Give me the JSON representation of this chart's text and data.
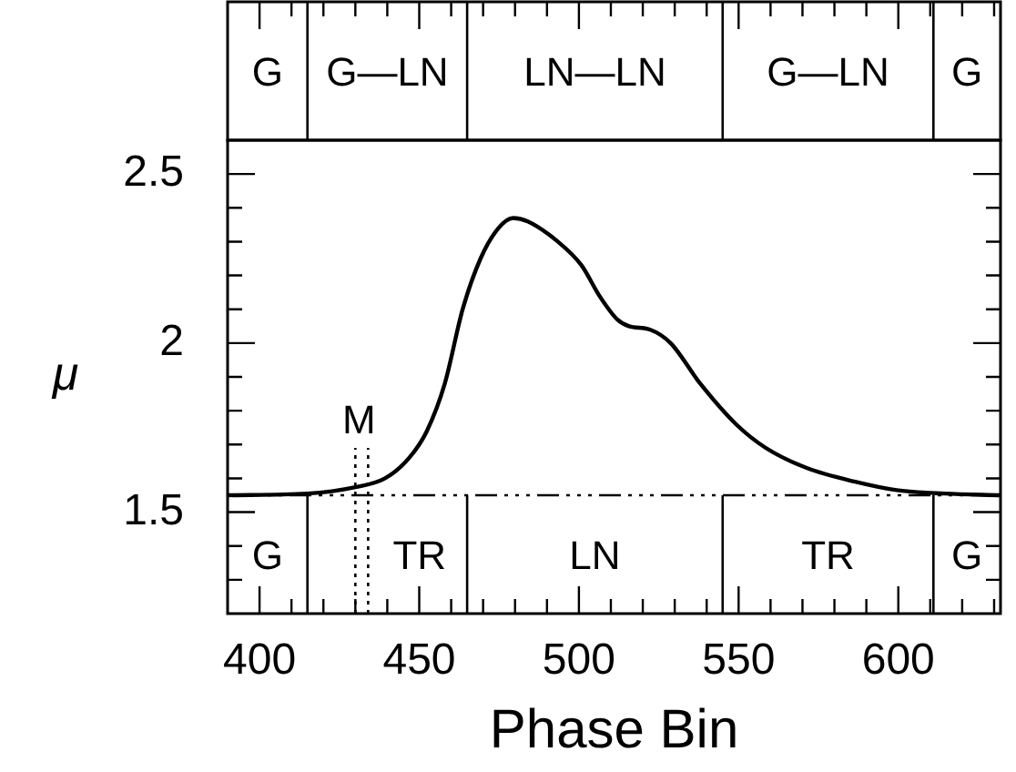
{
  "chart_data": {
    "type": "line",
    "xlabel": "Phase Bin",
    "ylabel": "μ",
    "color": "#000000",
    "x": [
      390,
      415,
      430,
      439.3,
      446.8,
      452.4,
      458,
      463.6,
      469.2,
      474.8,
      479.4,
      484,
      493.4,
      500.8,
      506.4,
      512,
      515.7,
      522.2,
      528.7,
      538,
      549.2,
      558.5,
      571.5,
      586.5,
      599.5,
      614.4,
      632
    ],
    "values": [
      1.55,
      1.555,
      1.574,
      1.6,
      1.66,
      1.74,
      1.88,
      2.1,
      2.25,
      2.34,
      2.37,
      2.36,
      2.3,
      2.23,
      2.14,
      2.07,
      2.05,
      2.04,
      2.0,
      1.88,
      1.76,
      1.69,
      1.63,
      1.59,
      1.565,
      1.555,
      1.55
    ],
    "xlim": [
      390,
      632
    ],
    "xticks": [
      400,
      {
        "value": 410,
        "label": null
      },
      {
        "value": 420,
        "label": null
      },
      {
        "value": 430,
        "label": null
      },
      {
        "value": 440,
        "label": null
      },
      450,
      {
        "value": 460,
        "label": null
      },
      {
        "value": 470,
        "label": null
      },
      {
        "value": 480,
        "label": null
      },
      {
        "value": 490,
        "label": null
      },
      500,
      {
        "value": 510,
        "label": null
      },
      {
        "value": 520,
        "label": null
      },
      {
        "value": 530,
        "label": null
      },
      {
        "value": 540,
        "label": null
      },
      550,
      {
        "value": 560,
        "label": null
      },
      {
        "value": 570,
        "label": null
      },
      {
        "value": 580,
        "label": null
      },
      {
        "value": 590,
        "label": null
      },
      600,
      {
        "value": 610,
        "label": null
      },
      {
        "value": 620,
        "label": null
      },
      {
        "value": 630,
        "label": null
      }
    ],
    "ylim": [
      1.2,
      2.6
    ],
    "yticks": [
      {
        "value": 1.3,
        "label": null
      },
      {
        "value": 1.4,
        "label": null
      },
      1.5,
      {
        "value": 1.6,
        "label": null
      },
      {
        "value": 1.7,
        "label": null
      },
      {
        "value": 1.8,
        "label": null
      },
      {
        "value": 1.9,
        "label": null
      },
      2,
      {
        "value": 2.1,
        "label": null
      },
      {
        "value": 2.2,
        "label": null
      },
      {
        "value": 2.3,
        "label": null
      },
      {
        "value": 2.4,
        "label": null
      },
      2.5
    ],
    "ref_lines": [
      {
        "axis": "y",
        "value": 1.55,
        "line_style": "dashed"
      },
      {
        "axis": "x",
        "value": 430,
        "line_style": "dotted",
        "label": "M"
      },
      {
        "axis": "x",
        "value": 434,
        "line_style": "dotted"
      },
      {
        "axis": "x",
        "value": 415,
        "line_style": "solid"
      },
      {
        "axis": "x",
        "value": 465,
        "line_style": "solid"
      },
      {
        "axis": "x",
        "value": 545,
        "line_style": "solid"
      },
      {
        "axis": "x",
        "value": 611,
        "line_style": "solid"
      }
    ],
    "annotations": [
      "G",
      "G—LN",
      "LN—LN",
      "G—LN",
      "G",
      "G",
      "TR",
      "LN",
      "TR",
      "G"
    ]
  }
}
